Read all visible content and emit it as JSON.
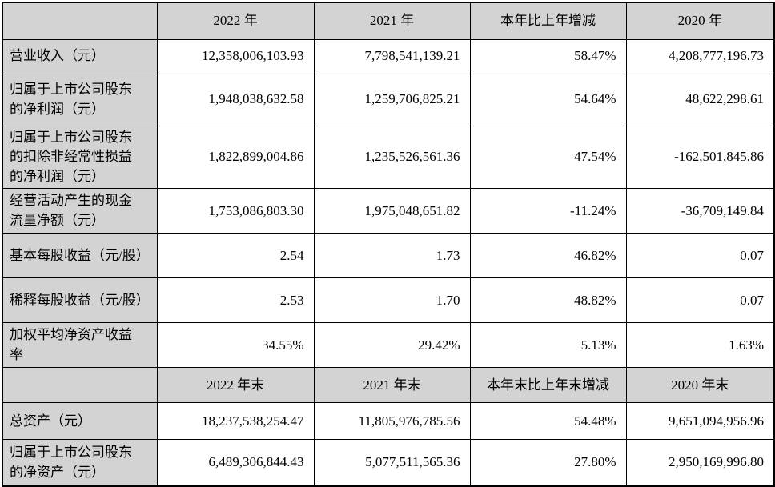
{
  "colors": {
    "header_bg": "#d3d3d3",
    "label_bg": "#d3d3d3",
    "cell_bg": "#ffffff",
    "border": "#000000",
    "text": "#000000"
  },
  "table": {
    "sections": [
      {
        "header": [
          "",
          "2022 年",
          "2021 年",
          "本年比上年增减",
          "2020 年"
        ],
        "rows": [
          {
            "label": "营业收入（元）",
            "values": [
              "12,358,006,103.93",
              "7,798,541,139.21",
              "58.47%",
              "4,208,777,196.73"
            ]
          },
          {
            "label": "归属于上市公司股东的净利润（元）",
            "values": [
              "1,948,038,632.58",
              "1,259,706,825.21",
              "54.64%",
              "48,622,298.61"
            ]
          },
          {
            "label": "归属于上市公司股东的扣除非经常性损益的净利润（元）",
            "values": [
              "1,822,899,004.86",
              "1,235,526,561.36",
              "47.54%",
              "-162,501,845.86"
            ]
          },
          {
            "label": "经营活动产生的现金流量净额（元）",
            "values": [
              "1,753,086,803.30",
              "1,975,048,651.82",
              "-11.24%",
              "-36,709,149.84"
            ]
          },
          {
            "label": "基本每股收益（元/股）",
            "values": [
              "2.54",
              "1.73",
              "46.82%",
              "0.07"
            ]
          },
          {
            "label": "稀释每股收益（元/股）",
            "values": [
              "2.53",
              "1.70",
              "48.82%",
              "0.07"
            ]
          },
          {
            "label": "加权平均净资产收益率",
            "values": [
              "34.55%",
              "29.42%",
              "5.13%",
              "1.63%"
            ]
          }
        ]
      },
      {
        "header": [
          "",
          "2022 年末",
          "2021 年末",
          "本年末比上年末增减",
          "2020 年末"
        ],
        "rows": [
          {
            "label": "总资产（元）",
            "values": [
              "18,237,538,254.47",
              "11,805,976,785.56",
              "54.48%",
              "9,651,094,956.96"
            ]
          },
          {
            "label": "归属于上市公司股东的净资产（元）",
            "values": [
              "6,489,306,844.43",
              "5,077,511,565.36",
              "27.80%",
              "2,950,169,996.80"
            ]
          }
        ]
      }
    ]
  }
}
